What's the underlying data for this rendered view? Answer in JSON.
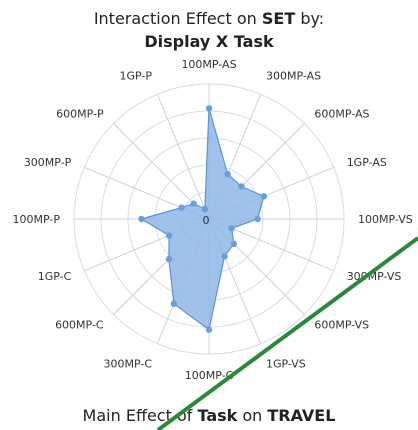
{
  "title": {
    "line1_prefix": "Interaction Effect on ",
    "line1_bold": "SET",
    "line1_suffix": " by:",
    "line2": "Display X Task"
  },
  "footer": {
    "prefix": "Main Effect of ",
    "bold1": "Task",
    "middle": " on ",
    "bold2": "TRAVEL"
  },
  "colors": {
    "fill": "#8fb7e6",
    "stroke": "#5b93d6",
    "point": "#6a9fdc",
    "grid": "#d6dde6",
    "axis": "#c9d3df",
    "overlay_line": "#2a8a3a"
  },
  "chart_data": {
    "type": "radar",
    "center_label": "0",
    "rmax": 5,
    "categories": [
      "100MP-AS",
      "300MP-AS",
      "600MP-AS",
      "1GP-AS",
      "100MP-VS",
      "300MP-VS",
      "600MP-VS",
      "1GP-VS",
      "100MP-C",
      "300MP-C",
      "600MP-C",
      "1GP-C",
      "100MP-P",
      "300MP-P",
      "600MP-P",
      "1GP-P"
    ],
    "values": [
      4.1,
      1.8,
      1.7,
      2.2,
      1.8,
      0.9,
      1.3,
      1.5,
      4.1,
      3.4,
      2.1,
      1.6,
      2.5,
      1.1,
      0.8,
      0.4
    ],
    "grid": true,
    "overlay": "green diagonal line from bottom-left to top-right"
  }
}
